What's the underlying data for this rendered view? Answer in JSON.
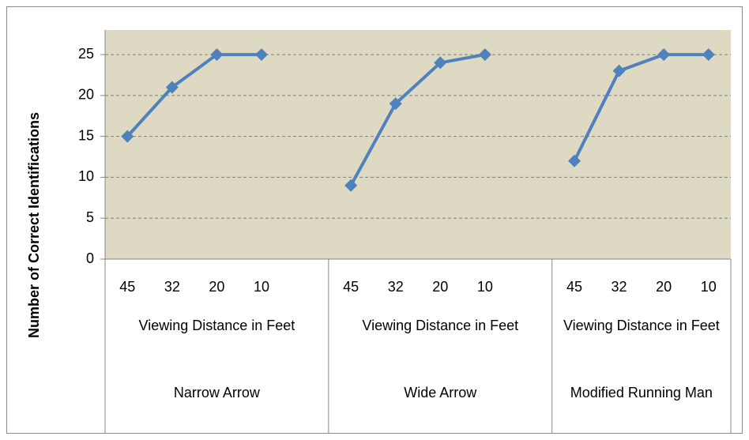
{
  "chart_data": {
    "type": "line",
    "y_axis_label": "Number of Correct Identifications",
    "color": "#4f81bd",
    "plot_background": "#ddd9c3",
    "grid": true,
    "ylim": [
      0,
      28
    ],
    "yticks": [
      0,
      5,
      10,
      15,
      20,
      25
    ],
    "groups": [
      {
        "name": "Narrow Arrow",
        "axis_label": "Viewing Distance in Feet",
        "categories": [
          "45",
          "32",
          "20",
          "10",
          null
        ],
        "values": [
          15,
          21,
          25,
          25,
          null
        ]
      },
      {
        "name": "Wide Arrow",
        "axis_label": "Viewing Distance in Feet",
        "categories": [
          "45",
          "32",
          "20",
          "10",
          null
        ],
        "values": [
          9,
          19,
          24,
          25,
          null
        ]
      },
      {
        "name": "Modified Running Man",
        "axis_label": "Viewing Distance in Feet",
        "categories": [
          "45",
          "32",
          "20",
          "10"
        ],
        "values": [
          12,
          23,
          25,
          25
        ]
      }
    ]
  }
}
